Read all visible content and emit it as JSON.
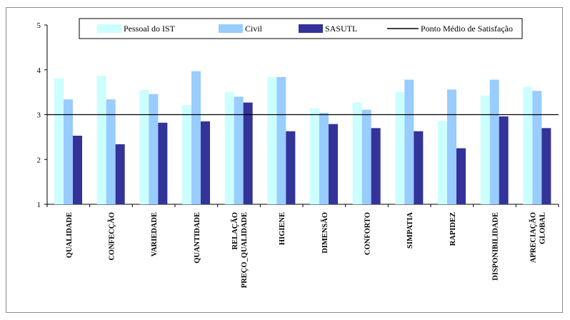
{
  "chart_data": {
    "type": "bar",
    "title": "",
    "xlabel": "",
    "ylabel": "",
    "ylim": [
      1,
      5
    ],
    "yticks": [
      "1",
      "2",
      "3",
      "4",
      "5"
    ],
    "grid": false,
    "legend_position": "top",
    "categories": [
      [
        "QUALIDADE"
      ],
      [
        "CONFECÇÃO"
      ],
      [
        "VARIEDADE"
      ],
      [
        "QUANTIDADE"
      ],
      [
        "RELAÇÃO",
        "PREÇO_QUALIDADE"
      ],
      [
        "HIGIENE"
      ],
      [
        "DIMENSÃO"
      ],
      [
        "CONFORTO"
      ],
      [
        "SIMPATIA"
      ],
      [
        "RAPIDEZ"
      ],
      [
        "DISPONIBILIDADE"
      ],
      [
        "APRECIAÇÃO",
        "GLOBAL"
      ]
    ],
    "series": [
      {
        "name": "Pessoal do IST",
        "color": "#ccffff",
        "values": [
          3.81,
          3.87,
          3.55,
          3.21,
          3.5,
          3.84,
          3.14,
          3.27,
          3.5,
          2.86,
          3.43,
          3.62
        ]
      },
      {
        "name": "Civil",
        "color": "#99ccff",
        "values": [
          3.34,
          3.34,
          3.46,
          3.97,
          3.4,
          3.84,
          3.04,
          3.11,
          3.78,
          3.56,
          3.78,
          3.53
        ]
      },
      {
        "name": "SASUTL",
        "color": "#333399",
        "values": [
          2.53,
          2.34,
          2.82,
          2.85,
          3.27,
          2.63,
          2.79,
          2.7,
          2.63,
          2.25,
          2.96,
          2.7
        ]
      }
    ],
    "reference_line": {
      "name": "Ponto Médio de Satisfação",
      "value": 3,
      "color": "#000000"
    }
  }
}
